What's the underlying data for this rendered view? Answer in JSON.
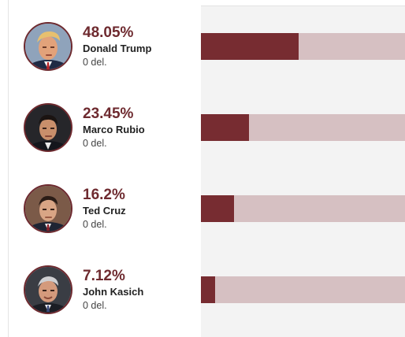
{
  "theme": {
    "accent": "#772c31",
    "track": "#d6c0c2",
    "panel_background": "#f3f3f3"
  },
  "candidates": [
    {
      "percent_label": "48.05%",
      "percent_value": 48.05,
      "name": "Donald Trump",
      "delegates": "0 del.",
      "avatar": "donald-trump-photo"
    },
    {
      "percent_label": "23.45%",
      "percent_value": 23.45,
      "name": "Marco Rubio",
      "delegates": "0 del.",
      "avatar": "marco-rubio-photo"
    },
    {
      "percent_label": "16.2%",
      "percent_value": 16.2,
      "name": "Ted Cruz",
      "delegates": "0 del.",
      "avatar": "ted-cruz-photo"
    },
    {
      "percent_label": "7.12%",
      "percent_value": 7.12,
      "name": "John Kasich",
      "delegates": "0 del.",
      "avatar": "john-kasich-photo"
    }
  ]
}
